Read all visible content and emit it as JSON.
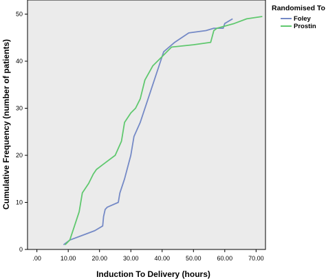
{
  "chart_data": {
    "type": "line",
    "xlabel": "Induction To Delivery (hours)",
    "ylabel": "Cumulative Frequency (number of patients)",
    "xlim": [
      -3,
      73
    ],
    "ylim": [
      0,
      53
    ],
    "x_ticks": [
      0,
      10,
      20,
      30,
      40,
      50,
      60,
      70
    ],
    "x_tick_labels": [
      ".00",
      "10.00",
      "20.00",
      "30.00",
      "40.00",
      "50.00",
      "60.00",
      "70.00"
    ],
    "y_ticks": [
      0,
      10,
      20,
      30,
      40,
      50
    ],
    "y_tick_labels": [
      "0",
      "10",
      "20",
      "30",
      "40",
      "50"
    ],
    "grid": false,
    "legend": {
      "title": "Randomised To",
      "placement": "right"
    },
    "series": [
      {
        "name": "Foley",
        "color": "#7489c6",
        "points": [
          [
            8.5,
            1
          ],
          [
            10.5,
            2
          ],
          [
            14.5,
            3
          ],
          [
            18.5,
            4
          ],
          [
            21,
            5
          ],
          [
            21.3,
            7
          ],
          [
            21.8,
            8.5
          ],
          [
            22.5,
            9
          ],
          [
            26,
            10
          ],
          [
            26.5,
            12
          ],
          [
            28,
            15
          ],
          [
            30,
            20
          ],
          [
            31,
            24
          ],
          [
            33,
            27
          ],
          [
            35.5,
            32
          ],
          [
            37,
            35
          ],
          [
            39,
            39
          ],
          [
            40.5,
            42
          ],
          [
            44,
            44
          ],
          [
            48.5,
            46
          ],
          [
            54,
            46.5
          ],
          [
            56.5,
            47
          ],
          [
            59.5,
            47
          ],
          [
            60,
            48
          ],
          [
            62.5,
            49
          ]
        ]
      },
      {
        "name": "Prostin",
        "color": "#5fc86e",
        "points": [
          [
            9,
            1
          ],
          [
            10.5,
            2
          ],
          [
            12,
            5
          ],
          [
            13.5,
            8
          ],
          [
            14.5,
            12
          ],
          [
            16.5,
            14
          ],
          [
            18,
            16
          ],
          [
            19,
            17
          ],
          [
            21,
            18
          ],
          [
            25,
            20
          ],
          [
            27,
            23
          ],
          [
            28,
            27
          ],
          [
            30,
            29
          ],
          [
            31.5,
            30
          ],
          [
            33,
            32
          ],
          [
            34.5,
            36
          ],
          [
            37,
            39
          ],
          [
            40,
            41
          ],
          [
            43,
            43
          ],
          [
            50,
            43.5
          ],
          [
            55.5,
            44
          ],
          [
            56.5,
            46.5
          ],
          [
            57.5,
            47
          ],
          [
            63,
            48
          ],
          [
            67,
            49
          ],
          [
            72,
            49.5
          ]
        ]
      }
    ]
  }
}
